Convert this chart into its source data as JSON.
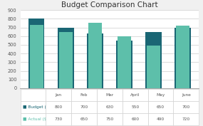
{
  "title": "Budget Comparison Chart",
  "categories": [
    "Jan",
    "Feb",
    "Mar",
    "April",
    "May",
    "June"
  ],
  "budget": [
    800,
    700,
    630,
    550,
    650,
    700
  ],
  "actual": [
    730,
    650,
    750,
    600,
    490,
    720
  ],
  "budget_color": "#1a6674",
  "actual_color": "#5dbfaa",
  "background_color": "#f0f0f0",
  "ylim": [
    0,
    900
  ],
  "yticks": [
    0,
    100,
    200,
    300,
    400,
    500,
    600,
    700,
    800,
    900
  ],
  "legend_labels": [
    "Budget ($)",
    "Actual ($)"
  ],
  "bar_width": 0.55,
  "title_fontsize": 7.5,
  "tick_fontsize": 4.8,
  "table_fontsize": 4.2
}
